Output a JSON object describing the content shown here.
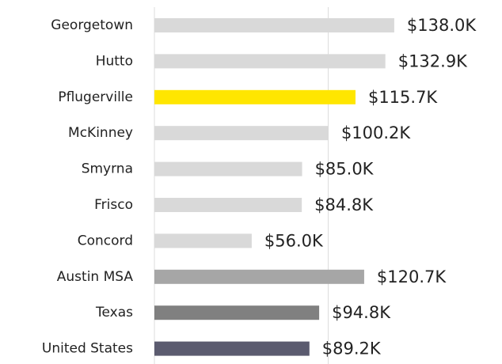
{
  "chart_data": {
    "type": "bar",
    "orientation": "horizontal",
    "categories": [
      "Georgetown",
      "Hutto",
      "Pflugerville",
      "McKinney",
      "Smyrna",
      "Frisco",
      "Concord",
      "Austin MSA",
      "Texas",
      "United States"
    ],
    "values": [
      138.0,
      132.9,
      115.7,
      100.2,
      85.0,
      84.8,
      56.0,
      120.7,
      94.8,
      89.2
    ],
    "value_labels": [
      "$138.0K",
      "$132.9K",
      "$115.7K",
      "$100.2K",
      "$85.0K",
      "$84.8K",
      "$56.0K",
      "$120.7K",
      "$94.8K",
      "$89.2K"
    ],
    "colors": [
      "#d9d9d9",
      "#d9d9d9",
      "#ffe600",
      "#d9d9d9",
      "#d9d9d9",
      "#d9d9d9",
      "#d9d9d9",
      "#a6a6a6",
      "#808080",
      "#5b5b6f"
    ],
    "xlim": [
      0,
      200
    ],
    "xticks": [
      0,
      100
    ],
    "grid": true
  }
}
